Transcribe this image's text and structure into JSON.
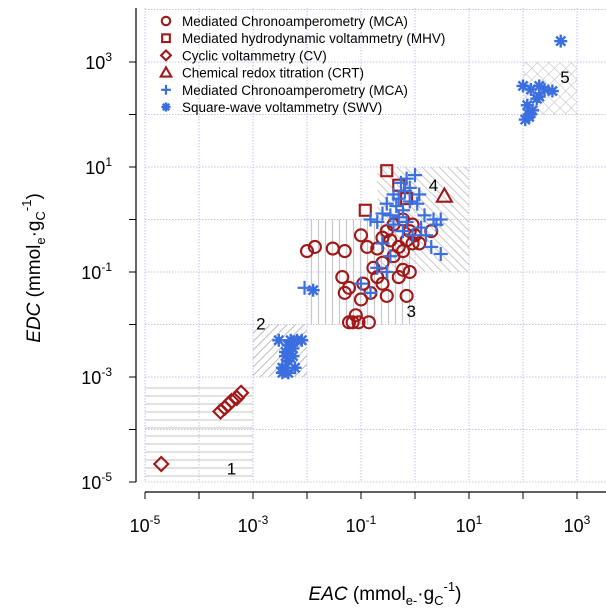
{
  "chart_data": {
    "type": "scatter",
    "x_scale": "log",
    "y_scale": "log",
    "xlim": [
      1e-05,
      2000
    ],
    "ylim": [
      1e-05,
      10000
    ],
    "grid": true,
    "legend_position": "top-left",
    "xlabel": {
      "main": "EAC",
      "open": " (mmol",
      "sub1": "e-",
      "dot": "·g",
      "sub2": "C",
      "sup": "-1",
      "close": ")"
    },
    "ylabel": {
      "main": "EDC",
      "open": " (mmol",
      "sub1": "e",
      "dot": "·g",
      "sub2": "C",
      "sup": "-1",
      "close": ")"
    },
    "x_ticks": [
      {
        "base": "10",
        "exp": "-5",
        "value": 1e-05
      },
      {
        "base": "10",
        "exp": "-3",
        "value": 0.001
      },
      {
        "base": "10",
        "exp": "-1",
        "value": 0.1
      },
      {
        "base": "10",
        "exp": "1",
        "value": 10
      },
      {
        "base": "10",
        "exp": "3",
        "value": 1000
      }
    ],
    "y_ticks": [
      {
        "base": "10",
        "exp": "-5",
        "value": 1e-05
      },
      {
        "base": "10",
        "exp": "-3",
        "value": 0.001
      },
      {
        "base": "10",
        "exp": "-1",
        "value": 0.1
      },
      {
        "base": "10",
        "exp": "1",
        "value": 10
      },
      {
        "base": "10",
        "exp": "3",
        "value": 1000
      }
    ],
    "colors": {
      "dark_red": "#a01818",
      "blue": "#3b6fe0",
      "grid": "#b3b3e6"
    },
    "regions": [
      {
        "label": "1",
        "x": [
          1e-05,
          0.001
        ],
        "y": [
          1e-05,
          0.0008
        ],
        "pattern": "hlines",
        "label_at": [
          0.0004,
          1.4e-05
        ]
      },
      {
        "label": "2",
        "x": [
          0.001,
          0.01
        ],
        "y": [
          0.001,
          0.01
        ],
        "pattern": "diag",
        "label_at": [
          0.0014,
          0.008
        ]
      },
      {
        "label": "3",
        "x": [
          0.01,
          1
        ],
        "y": [
          0.01,
          1
        ],
        "pattern": "vlines",
        "label_at": [
          0.85,
          0.014
        ]
      },
      {
        "label": "4",
        "x": [
          0.2,
          10
        ],
        "y": [
          0.1,
          10
        ],
        "pattern": "cross",
        "label_at": [
          2.2,
          3.5
        ]
      },
      {
        "label": "5",
        "x": [
          100,
          1000
        ],
        "y": [
          100,
          1000
        ],
        "pattern": "grid",
        "label_at": [
          600,
          400
        ]
      }
    ],
    "series": [
      {
        "name": "Mediated Chronoamperometry (MCA)",
        "marker": "circle",
        "color": "#a01818",
        "points": [
          [
            0.01,
            0.25
          ],
          [
            0.014,
            0.3
          ],
          [
            0.03,
            0.28
          ],
          [
            0.05,
            0.25
          ],
          [
            0.1,
            0.5
          ],
          [
            0.13,
            0.3
          ],
          [
            0.2,
            0.28
          ],
          [
            0.25,
            0.15
          ],
          [
            0.3,
            0.6
          ],
          [
            0.4,
            0.8
          ],
          [
            0.5,
            0.3
          ],
          [
            0.6,
            1.0
          ],
          [
            0.7,
            0.4
          ],
          [
            0.8,
            0.6
          ],
          [
            0.9,
            0.35
          ],
          [
            1.0,
            0.5
          ],
          [
            0.5,
            0.08
          ],
          [
            0.6,
            0.11
          ],
          [
            0.8,
            0.1
          ],
          [
            0.25,
            0.06
          ],
          [
            0.3,
            0.035
          ],
          [
            0.15,
            0.04
          ],
          [
            0.1,
            0.03
          ],
          [
            0.08,
            0.015
          ],
          [
            0.06,
            0.011
          ],
          [
            0.05,
            0.04
          ],
          [
            0.045,
            0.08
          ],
          [
            0.06,
            0.05
          ],
          [
            0.14,
            0.011
          ],
          [
            0.09,
            0.011
          ],
          [
            0.07,
            0.011
          ],
          [
            0.11,
            0.06
          ],
          [
            0.17,
            0.12
          ],
          [
            0.7,
            0.035
          ],
          [
            0.4,
            0.2
          ],
          [
            0.9,
            0.8
          ],
          [
            0.2,
            0.08
          ],
          [
            0.35,
            0.4
          ],
          [
            2.0,
            0.6
          ],
          [
            1.2,
            0.35
          ],
          [
            0.6,
            0.25
          ],
          [
            0.25,
            0.45
          ]
        ]
      },
      {
        "name": "Mediated hydrodynamic voltammetry (MHV)",
        "marker": "square",
        "color": "#a01818",
        "points": [
          [
            0.12,
            1.5
          ],
          [
            0.3,
            8.5
          ],
          [
            0.5,
            4.5
          ],
          [
            0.7,
            2.5
          ]
        ]
      },
      {
        "name": "Cyclic voltammetry (CV)",
        "marker": "diamond",
        "color": "#a01818",
        "points": [
          [
            2e-05,
            2.2e-05
          ],
          [
            0.00025,
            0.00022
          ],
          [
            0.0003,
            0.00026
          ],
          [
            0.00035,
            0.0003
          ],
          [
            0.0004,
            0.00035
          ],
          [
            0.0005,
            0.0004
          ],
          [
            0.0006,
            0.0005
          ]
        ]
      },
      {
        "name": "Chemical redox titration (CRT)",
        "marker": "triangle",
        "color": "#a01818",
        "points": [
          [
            3.5,
            2.8
          ]
        ]
      },
      {
        "name": "Mediated Chronoamperometry (MCA)",
        "marker": "plus",
        "color": "#3b6fe0",
        "points": [
          [
            0.009,
            0.05
          ],
          [
            0.1,
            0.06
          ],
          [
            0.15,
            0.04
          ],
          [
            0.2,
            0.12
          ],
          [
            0.25,
            0.35
          ],
          [
            0.3,
            0.1
          ],
          [
            0.35,
            1.2
          ],
          [
            0.4,
            0.8
          ],
          [
            0.45,
            1.8
          ],
          [
            0.5,
            2.5
          ],
          [
            0.55,
            5.0
          ],
          [
            0.6,
            1.5
          ],
          [
            0.65,
            3.5
          ],
          [
            0.7,
            6.0
          ],
          [
            0.8,
            2.2
          ],
          [
            0.9,
            0.5
          ],
          [
            1.0,
            7.0
          ],
          [
            1.2,
            3.0
          ],
          [
            1.5,
            1.2
          ],
          [
            2.0,
            0.3
          ],
          [
            2.5,
            0.8
          ],
          [
            3.0,
            1.0
          ],
          [
            0.3,
            2.0
          ],
          [
            0.2,
            0.9
          ],
          [
            0.25,
            1.3
          ],
          [
            1.3,
            0.7
          ],
          [
            0.6,
            0.6
          ],
          [
            0.4,
            3.0
          ],
          [
            0.5,
            1.1
          ],
          [
            0.7,
            0.9
          ],
          [
            0.8,
            4.0
          ],
          [
            1.6,
            0.5
          ],
          [
            2.2,
            1.0
          ],
          [
            3.0,
            0.22
          ],
          [
            0.35,
            0.2
          ],
          [
            0.15,
            1.0
          ],
          [
            1.1,
            2.0
          ]
        ]
      },
      {
        "name": "Square-wave voltammetry (SWV)",
        "marker": "asterisk",
        "color": "#3b6fe0",
        "points": [
          [
            0.003,
            0.005
          ],
          [
            0.004,
            0.003
          ],
          [
            0.0045,
            0.002
          ],
          [
            0.005,
            0.005
          ],
          [
            0.0055,
            0.0025
          ],
          [
            0.006,
            0.0015
          ],
          [
            0.0035,
            0.0012
          ],
          [
            0.004,
            0.0015
          ],
          [
            0.008,
            0.005
          ],
          [
            0.0045,
            0.004
          ],
          [
            0.0055,
            0.0035
          ],
          [
            0.0065,
            0.005
          ],
          [
            0.004,
            0.0025
          ],
          [
            0.005,
            0.004
          ],
          [
            0.0035,
            0.0015
          ],
          [
            0.0045,
            0.0012
          ],
          [
            0.013,
            0.045
          ],
          [
            100,
            350
          ],
          [
            120,
            150
          ],
          [
            130,
            100
          ],
          [
            150,
            120
          ],
          [
            180,
            200
          ],
          [
            200,
            350
          ],
          [
            250,
            300
          ],
          [
            350,
            280
          ],
          [
            500,
            2500
          ],
          [
            110,
            80
          ],
          [
            130,
            90
          ],
          [
            200,
            220
          ],
          [
            140,
            300
          ]
        ]
      }
    ]
  },
  "legend": [
    {
      "label": "Mediated Chronoamperometry (MCA)",
      "marker": "circle",
      "color": "#a01818"
    },
    {
      "label": "Mediated hydrodynamic voltammetry (MHV)",
      "marker": "square",
      "color": "#a01818"
    },
    {
      "label": "Cyclic voltammetry (CV)",
      "marker": "diamond",
      "color": "#a01818"
    },
    {
      "label": "Chemical redox titration (CRT)",
      "marker": "triangle",
      "color": "#a01818"
    },
    {
      "label": "Mediated Chronoamperometry (MCA)",
      "marker": "plus",
      "color": "#3b6fe0"
    },
    {
      "label": "Square-wave voltammetry (SWV)",
      "marker": "asterisk",
      "color": "#3b6fe0"
    }
  ]
}
